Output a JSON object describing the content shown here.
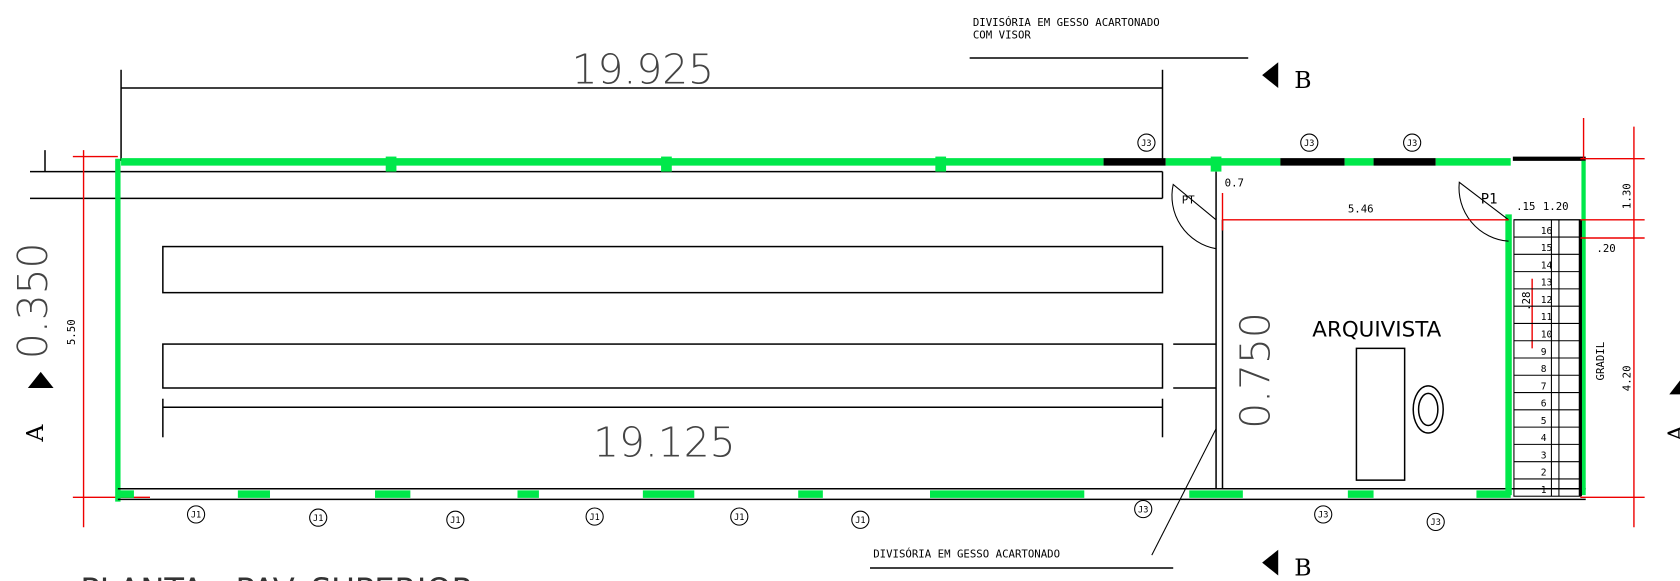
{
  "title": "PLANTA - PAV. SUPERIOR",
  "notes": {
    "top_partition": [
      "DIVISÓRIA EM GESSO ACARTONADO",
      "COM VISOR"
    ],
    "bottom_partition": "DIVISÓRIA EM GESSO ACARTONADO"
  },
  "dimensions": {
    "top_length": "19.925",
    "table_length": "19.125",
    "left_width": "0.350",
    "corridor_width": "0.750",
    "left_height": "5.50",
    "room_width": "5.46",
    "door_offset": "0.7",
    "stair_offset": ".15",
    "stair_width": "1.20",
    "right_top": "1.30",
    "right_height": "4.20",
    "step_depth": ".20",
    "riser": ".28"
  },
  "sections": {
    "a_left": "A",
    "a_right": "A",
    "b_top": "B",
    "b_bottom": "B"
  },
  "room": "ARQUIVISTA",
  "doors": [
    "PT",
    "P1"
  ],
  "railing": "GRADIL",
  "windows_top": [
    "J3",
    "J3",
    "J3"
  ],
  "windows_bottom": [
    "J1",
    "J1",
    "J1",
    "J1",
    "J1",
    "J1",
    "J3",
    "J3",
    "J3"
  ],
  "stair_steps": [
    1,
    2,
    3,
    4,
    5,
    6,
    7,
    8,
    9,
    10,
    11,
    12,
    13,
    14,
    15,
    16
  ]
}
